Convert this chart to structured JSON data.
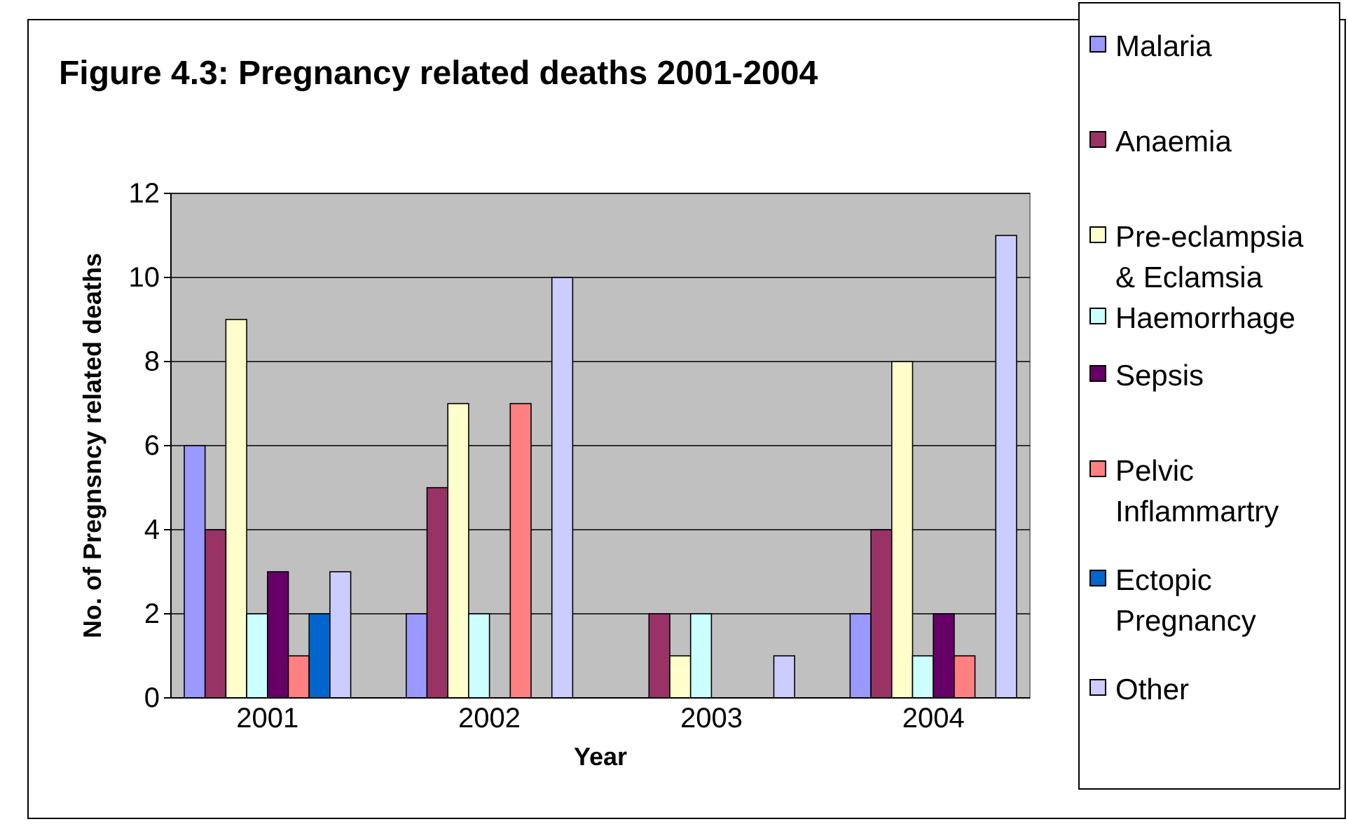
{
  "chart_data": {
    "type": "bar",
    "title": "Figure 4.3: Pregnancy related deaths 2001-2004",
    "xlabel": "Year",
    "ylabel": "No. of Pregnsncy related deaths",
    "categories": [
      "2001",
      "2002",
      "2003",
      "2004"
    ],
    "series": [
      {
        "name": "Malaria",
        "color": "#9999ff",
        "values": [
          6,
          2,
          0,
          2
        ]
      },
      {
        "name": "Anaemia",
        "color": "#993366",
        "values": [
          4,
          5,
          2,
          4
        ]
      },
      {
        "name": "Pre-eclampsia & Eclamsia",
        "color": "#ffffcc",
        "values": [
          9,
          7,
          1,
          8
        ]
      },
      {
        "name": "Haemorrhage",
        "color": "#ccffff",
        "values": [
          2,
          2,
          2,
          1
        ]
      },
      {
        "name": "Sepsis",
        "color": "#660066",
        "values": [
          3,
          0,
          0,
          2
        ]
      },
      {
        "name": "Pelvic Inflammartry",
        "color": "#ff8080",
        "values": [
          1,
          7,
          0,
          1
        ]
      },
      {
        "name": "Ectopic Pregnancy",
        "color": "#0066cc",
        "values": [
          2,
          0,
          0,
          0
        ]
      },
      {
        "name": "Other",
        "color": "#ccccff",
        "values": [
          3,
          10,
          1,
          11
        ]
      }
    ],
    "ylim": [
      0,
      12
    ],
    "yticks": [
      0,
      2,
      4,
      6,
      8,
      10,
      12
    ],
    "grid": "y",
    "legend": "right"
  }
}
